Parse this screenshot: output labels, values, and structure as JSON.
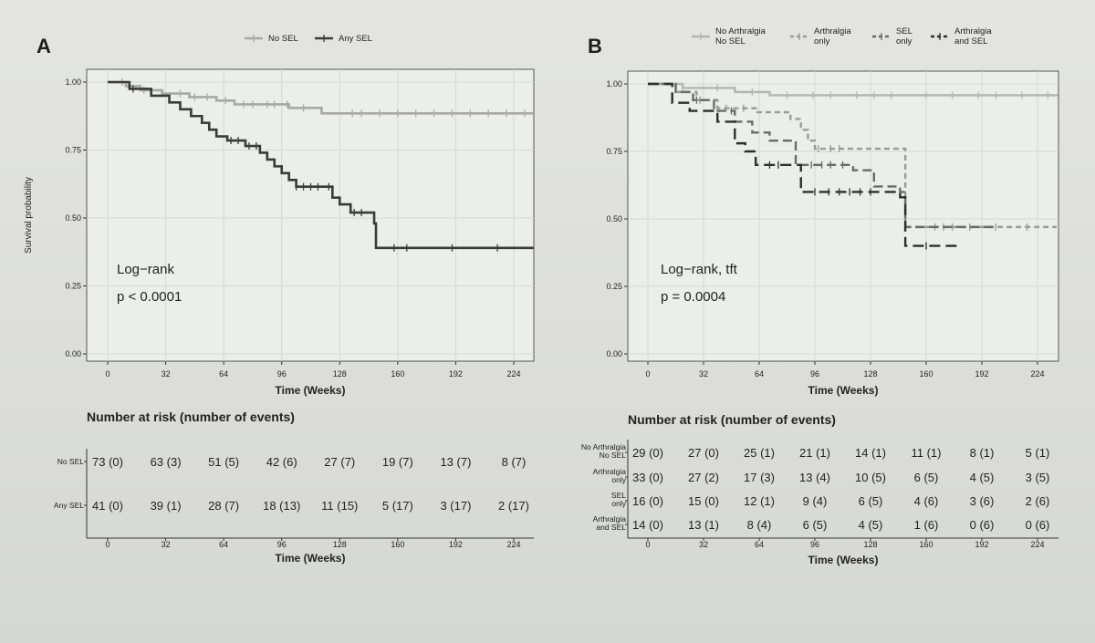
{
  "chart_data": [
    {
      "type": "line",
      "panel": "A",
      "xlabel": "Time (Weeks)",
      "ylabel": "Survival probability",
      "x_ticks": [
        0,
        32,
        64,
        96,
        128,
        160,
        192,
        224
      ],
      "y_ticks": [
        "0.00",
        "0.25",
        "0.50",
        "0.75",
        "1.00"
      ],
      "xlim": [
        0,
        235
      ],
      "ylim": [
        0,
        1
      ],
      "legend": [
        "No SEL",
        "Any SEL"
      ],
      "legend_position": "top",
      "annotation": [
        "Log−rank",
        "p < 0.0001"
      ],
      "series": [
        {
          "name": "No SEL",
          "color": "#a8a8a8",
          "steps": [
            [
              0,
              1.0
            ],
            [
              10,
              0.985
            ],
            [
              18,
              0.97
            ],
            [
              30,
              0.958
            ],
            [
              45,
              0.945
            ],
            [
              60,
              0.932
            ],
            [
              70,
              0.918
            ],
            [
              100,
              0.905
            ],
            [
              118,
              0.885
            ],
            [
              235,
              0.885
            ]
          ],
          "censor_x": [
            8,
            20,
            30,
            40,
            48,
            55,
            65,
            75,
            80,
            88,
            92,
            99,
            108,
            135,
            140,
            150,
            160,
            170,
            180,
            190,
            200,
            210,
            220,
            230
          ]
        },
        {
          "name": "Any SEL",
          "color": "#3a3a3a",
          "steps": [
            [
              0,
              1.0
            ],
            [
              12,
              0.975
            ],
            [
              24,
              0.95
            ],
            [
              34,
              0.925
            ],
            [
              40,
              0.9
            ],
            [
              46,
              0.875
            ],
            [
              52,
              0.85
            ],
            [
              56,
              0.825
            ],
            [
              60,
              0.8
            ],
            [
              66,
              0.785
            ],
            [
              76,
              0.765
            ],
            [
              84,
              0.74
            ],
            [
              88,
              0.715
            ],
            [
              92,
              0.69
            ],
            [
              96,
              0.665
            ],
            [
              100,
              0.64
            ],
            [
              104,
              0.615
            ],
            [
              124,
              0.575
            ],
            [
              128,
              0.55
            ],
            [
              134,
              0.52
            ],
            [
              147,
              0.48
            ],
            [
              148,
              0.39
            ],
            [
              235,
              0.39
            ]
          ],
          "censor_x": [
            14,
            68,
            72,
            78,
            82,
            104,
            108,
            112,
            116,
            122,
            136,
            140,
            158,
            165,
            190,
            215
          ]
        }
      ],
      "risk_table": {
        "title": "Number at risk (number of events)",
        "xlabel": "Time (Weeks)",
        "rows": [
          {
            "label": [
              "No SEL"
            ],
            "values": [
              "73 (0)",
              "63 (3)",
              "51 (5)",
              "42 (6)",
              "27 (7)",
              "19 (7)",
              "13 (7)",
              "8 (7)"
            ]
          },
          {
            "label": [
              "Any SEL"
            ],
            "values": [
              "41 (0)",
              "39 (1)",
              "28 (7)",
              "18 (13)",
              "11 (15)",
              "5 (17)",
              "3 (17)",
              "2 (17)"
            ]
          }
        ]
      }
    },
    {
      "type": "line",
      "panel": "B",
      "xlabel": "Time (Weeks)",
      "ylabel": "",
      "x_ticks": [
        0,
        32,
        64,
        96,
        128,
        160,
        192,
        224
      ],
      "y_ticks": [
        "0.00",
        "0.25",
        "0.50",
        "0.75",
        "1.00"
      ],
      "xlim": [
        0,
        235
      ],
      "ylim": [
        0,
        1
      ],
      "legend": [
        [
          "No Arthralgia",
          "No SEL"
        ],
        [
          "Arthralgia",
          "only"
        ],
        [
          "SEL",
          "only"
        ],
        [
          "Arthralgia",
          "and SEL"
        ]
      ],
      "legend_position": "top",
      "annotation": [
        "Log−rank, tft",
        "p = 0.0004"
      ],
      "series": [
        {
          "name": "No Arthralgia No SEL",
          "color": "#b4b4b4",
          "dash": "",
          "steps": [
            [
              0,
              1.0
            ],
            [
              20,
              0.985
            ],
            [
              50,
              0.97
            ],
            [
              70,
              0.958
            ],
            [
              235,
              0.955
            ]
          ],
          "censor_x": [
            20,
            40,
            60,
            80,
            95,
            105,
            120,
            130,
            140,
            160,
            175,
            190,
            200,
            215,
            230
          ]
        },
        {
          "name": "Arthralgia only",
          "color": "#9a9a9a",
          "dash": "6,4",
          "steps": [
            [
              0,
              1.0
            ],
            [
              16,
              0.97
            ],
            [
              28,
              0.94
            ],
            [
              40,
              0.91
            ],
            [
              62,
              0.895
            ],
            [
              82,
              0.87
            ],
            [
              88,
              0.83
            ],
            [
              92,
              0.79
            ],
            [
              96,
              0.76
            ],
            [
              145,
              0.76
            ],
            [
              148,
              0.47
            ],
            [
              235,
              0.47
            ]
          ],
          "censor_x": [
            30,
            45,
            55,
            98,
            105,
            110,
            165,
            170,
            175,
            185,
            200,
            218
          ]
        },
        {
          "name": "SEL only",
          "color": "#6a6a6a",
          "dash": "10,5",
          "steps": [
            [
              0,
              1.0
            ],
            [
              16,
              0.97
            ],
            [
              26,
              0.94
            ],
            [
              38,
              0.9
            ],
            [
              50,
              0.86
            ],
            [
              60,
              0.82
            ],
            [
              70,
              0.79
            ],
            [
              85,
              0.7
            ],
            [
              118,
              0.68
            ],
            [
              130,
              0.62
            ],
            [
              145,
              0.6
            ],
            [
              148,
              0.47
            ],
            [
              200,
              0.47
            ]
          ],
          "censor_x": [
            28,
            48,
            94,
            100,
            105,
            112
          ]
        },
        {
          "name": "Arthralgia and SEL",
          "color": "#2e2e2e",
          "dash": "12,6",
          "steps": [
            [
              0,
              1.0
            ],
            [
              14,
              0.93
            ],
            [
              24,
              0.9
            ],
            [
              40,
              0.86
            ],
            [
              50,
              0.78
            ],
            [
              56,
              0.75
            ],
            [
              62,
              0.7
            ],
            [
              88,
              0.6
            ],
            [
              145,
              0.58
            ],
            [
              148,
              0.4
            ],
            [
              180,
              0.4
            ]
          ],
          "censor_x": [
            70,
            75,
            96,
            104,
            110,
            116,
            122,
            128,
            160
          ]
        }
      ],
      "risk_table": {
        "title": "Number at risk (number of events)",
        "xlabel": "Time (Weeks)",
        "rows": [
          {
            "label": [
              "No Arthralgia",
              "No SEL"
            ],
            "values": [
              "29 (0)",
              "27 (0)",
              "25 (1)",
              "21 (1)",
              "14 (1)",
              "11 (1)",
              "8 (1)",
              "5 (1)"
            ]
          },
          {
            "label": [
              "Arthralgia",
              "only"
            ],
            "values": [
              "33 (0)",
              "27 (2)",
              "17 (3)",
              "13 (4)",
              "10 (5)",
              "6 (5)",
              "4 (5)",
              "3 (5)"
            ]
          },
          {
            "label": [
              "SEL",
              "only"
            ],
            "values": [
              "16 (0)",
              "15 (0)",
              "12 (1)",
              "9 (4)",
              "6 (5)",
              "4 (6)",
              "3 (6)",
              "2 (6)"
            ]
          },
          {
            "label": [
              "Arthralgia",
              "and SEL"
            ],
            "values": [
              "14 (0)",
              "13 (1)",
              "8 (4)",
              "6 (5)",
              "4 (5)",
              "1 (6)",
              "0 (6)",
              "0 (6)"
            ]
          }
        ]
      }
    }
  ],
  "panel_labels": [
    "A",
    "B"
  ]
}
